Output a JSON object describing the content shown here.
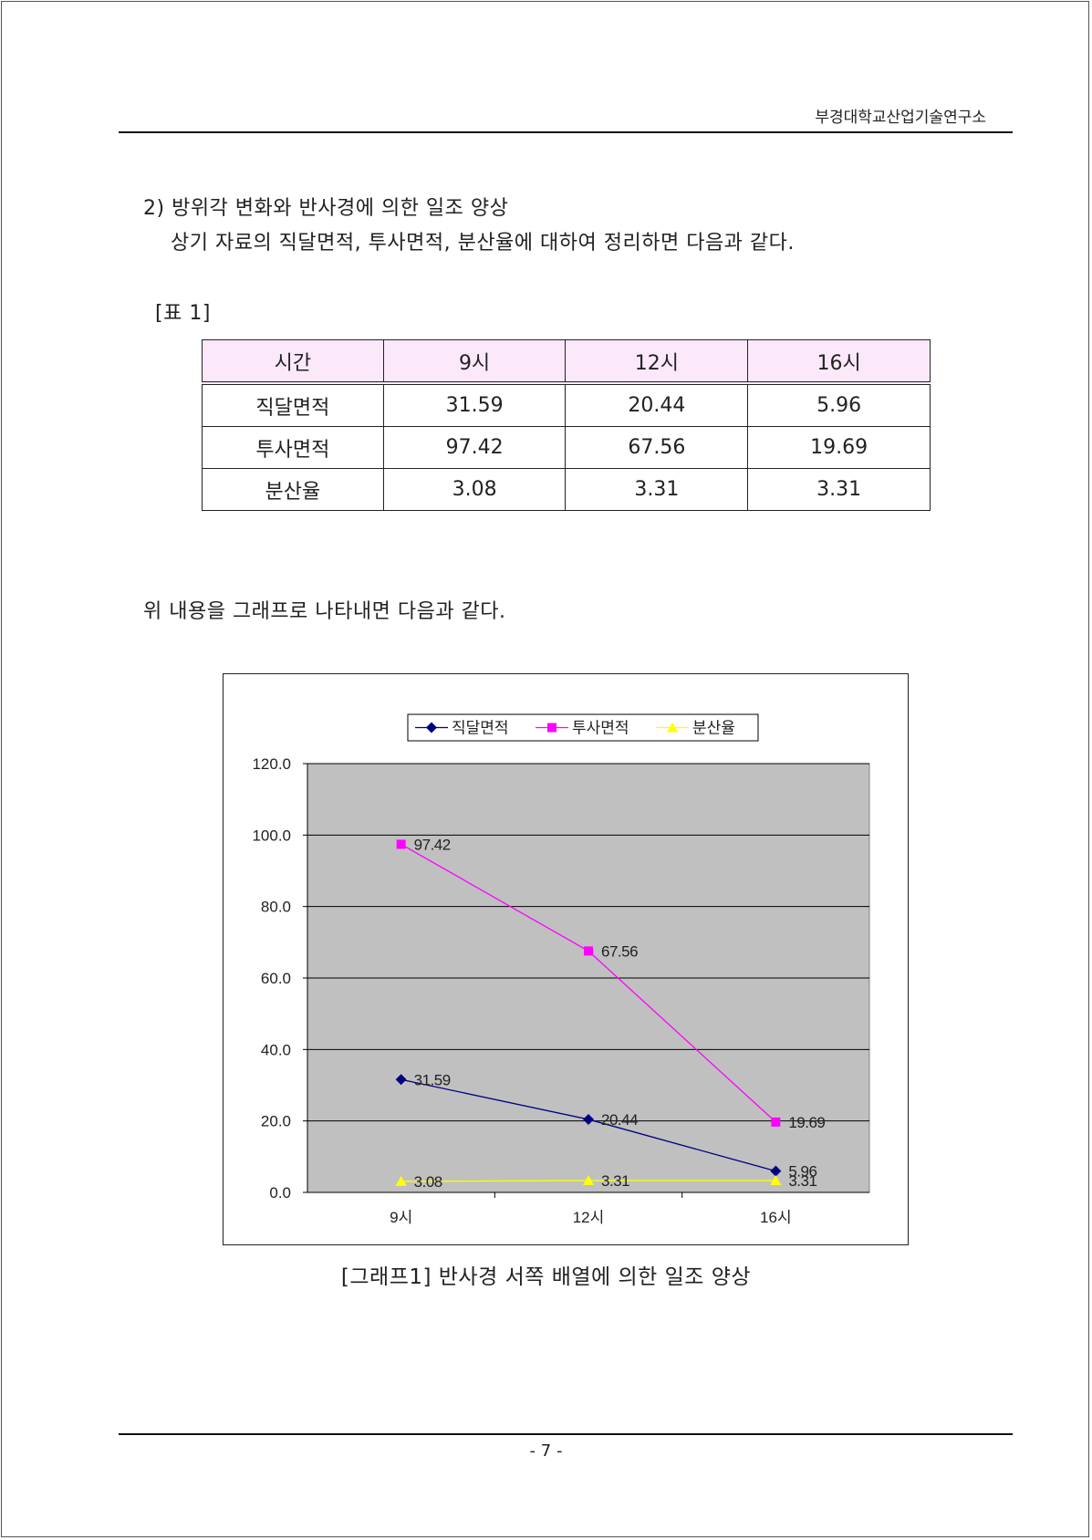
{
  "header": {
    "institution": "부경대학교산업기술연구소"
  },
  "section": {
    "heading": "2) 방위각 변화와 반사경에 의한 일조 양상",
    "intro": "상기 자료의 직달면적, 투사면적, 분산율에 대하여 정리하면 다음과 같다."
  },
  "table": {
    "caption": "[표 1]",
    "headers": [
      "시간",
      "9시",
      "12시",
      "16시"
    ],
    "rows": [
      [
        "직달면적",
        "31.59",
        "20.44",
        "5.96"
      ],
      [
        "투사면적",
        "97.42",
        "67.56",
        "19.69"
      ],
      [
        "분산율",
        "3.08",
        "3.31",
        "3.31"
      ]
    ]
  },
  "graph_intro": "위 내용을 그래프로 나타내면 다음과 같다.",
  "graph_caption": "[그래프1] 반사경 서쪽 배열에 의한 일조 양상",
  "page_number": "- 7 -",
  "chart_data": {
    "type": "line",
    "categories": [
      "9시",
      "12시",
      "16시"
    ],
    "series": [
      {
        "name": "직달면적",
        "values": [
          31.59,
          20.44,
          5.96
        ],
        "color": "#000080",
        "marker": "diamond"
      },
      {
        "name": "투사면적",
        "values": [
          97.42,
          67.56,
          19.69
        ],
        "color": "#ff00ff",
        "marker": "square"
      },
      {
        "name": "분산율",
        "values": [
          3.08,
          3.31,
          3.31
        ],
        "color": "#ffff00",
        "marker": "triangle"
      }
    ],
    "data_labels": [
      [
        "31.59",
        "20.44",
        "5.96"
      ],
      [
        "97.42",
        "67.56",
        "19.69"
      ],
      [
        "3.08",
        "3.31",
        "3.31"
      ]
    ],
    "y_ticks": [
      "0.0",
      "20.0",
      "40.0",
      "60.0",
      "80.0",
      "100.0",
      "120.0"
    ],
    "ylim": [
      0,
      120
    ],
    "title": "",
    "xlabel": "",
    "ylabel": "",
    "grid": true,
    "plot_background": "#c0c0c0",
    "legend_position": "top"
  }
}
